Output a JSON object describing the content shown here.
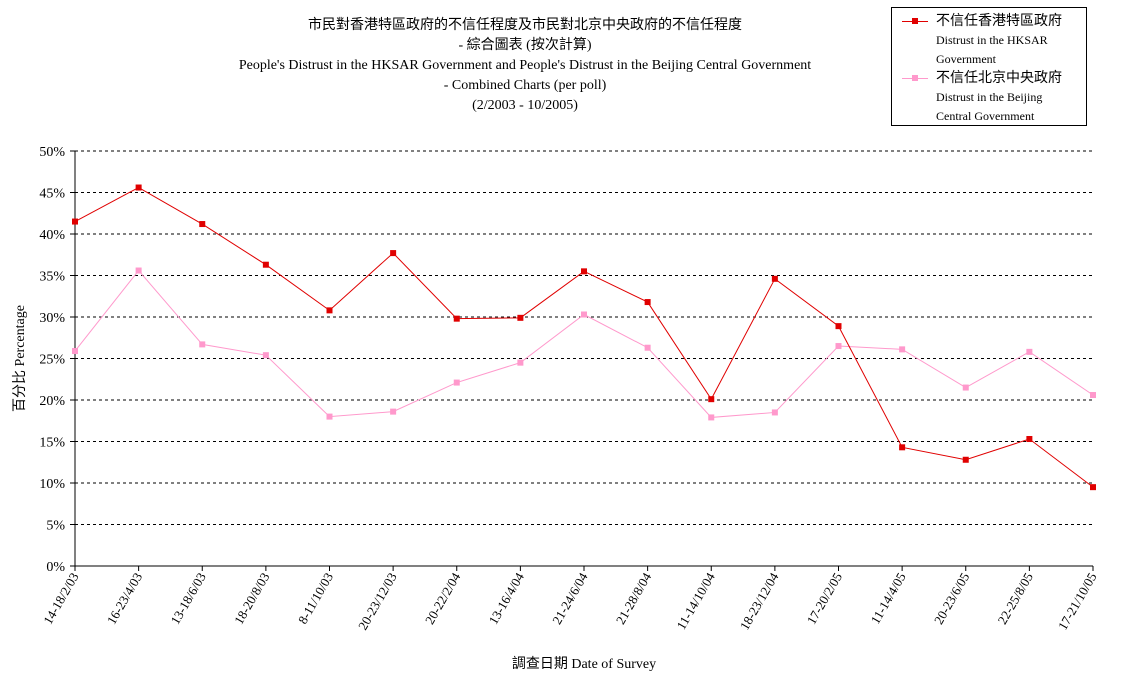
{
  "chart_data": {
    "type": "line",
    "title_lines": [
      "市民對香港特區政府的不信任程度及市民對北京中央政府的不信任程度",
      "- 綜合圖表 (按次計算)",
      "People's Distrust in the HKSAR Government and People's Distrust in the Beijing Central Government",
      "- Combined Charts (per poll)",
      "(2/2003 - 10/2005)"
    ],
    "xlabel": "調查日期 Date of Survey",
    "ylabel": "百分比 Percentage",
    "ylim": [
      0,
      50
    ],
    "yticks": [
      "0%",
      "5%",
      "10%",
      "15%",
      "20%",
      "25%",
      "30%",
      "35%",
      "40%",
      "45%",
      "50%"
    ],
    "grid": true,
    "legend_position": "top-right",
    "categories": [
      "14-18/2/03",
      "16-23/4/03",
      "13-18/6/03",
      "18-20/8/03",
      "8-11/10/03",
      "20-23/12/03",
      "20-22/2/04",
      "13-16/4/04",
      "21-24/6/04",
      "21-28/8/04",
      "11-14/10/04",
      "18-23/12/04",
      "17-20/2/05",
      "11-14/4/05",
      "20-23/6/05",
      "22-25/8/05",
      "17-21/10/05"
    ],
    "series": [
      {
        "name_zh": "不信任香港特區政府",
        "name_en_lines": [
          "Distrust in the HKSAR",
          "Government"
        ],
        "color": "#e00000",
        "values": [
          41.5,
          45.6,
          41.2,
          36.3,
          30.8,
          37.7,
          29.8,
          29.9,
          35.5,
          31.8,
          20.1,
          34.6,
          28.9,
          14.3,
          12.8,
          15.3,
          9.5
        ]
      },
      {
        "name_zh": "不信任北京中央政府",
        "name_en_lines": [
          "Distrust in the Beijing",
          "Central Government"
        ],
        "color": "#ff99cc",
        "values": [
          25.9,
          35.6,
          26.7,
          25.4,
          18.0,
          18.6,
          22.1,
          24.5,
          30.3,
          26.3,
          17.9,
          18.5,
          26.5,
          26.1,
          21.5,
          25.8,
          20.6
        ]
      }
    ]
  }
}
